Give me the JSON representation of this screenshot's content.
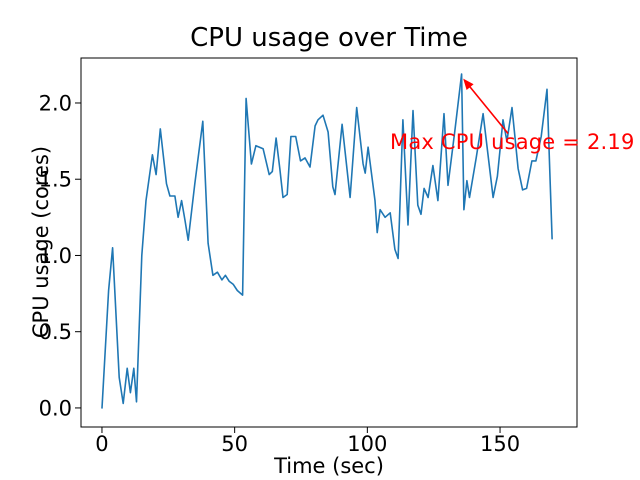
{
  "chart_data": {
    "type": "line",
    "title": "CPU usage over Time",
    "xlabel": "Time (sec)",
    "ylabel": "CPU usage (cores)",
    "line_color": "#1f77b4",
    "axis_color": "#000000",
    "background_color": "#ffffff",
    "grid": false,
    "legend": false,
    "xlim": [
      -7.9,
      179.0
    ],
    "ylim": [
      -0.125,
      2.295
    ],
    "xticks": {
      "values": [
        0,
        50,
        100,
        150
      ],
      "labels": [
        "0",
        "50",
        "100",
        "150"
      ]
    },
    "yticks": {
      "values": [
        0.0,
        0.5,
        1.0,
        1.5,
        2.0
      ],
      "labels": [
        "0.0",
        "0.5",
        "1.0",
        "1.5",
        "2.0"
      ]
    },
    "max_cpu_usage": 2.19,
    "annotation": {
      "text": "Max CPU usage = 2.19",
      "color": "#ff0000",
      "arrow_tip_xy": [
        136.1,
        2.16
      ],
      "arrow_tail_xy": [
        153.0,
        1.8
      ]
    },
    "points": [
      [
        0,
        0.0
      ],
      [
        2.5,
        0.77
      ],
      [
        4,
        1.05
      ],
      [
        6.5,
        0.2
      ],
      [
        8,
        0.03
      ],
      [
        9.5,
        0.26
      ],
      [
        10.7,
        0.1
      ],
      [
        12,
        0.26
      ],
      [
        13,
        0.04
      ],
      [
        15,
        1.0
      ],
      [
        16.6,
        1.36
      ],
      [
        19,
        1.66
      ],
      [
        20.4,
        1.53
      ],
      [
        22,
        1.83
      ],
      [
        24.3,
        1.47
      ],
      [
        25.6,
        1.39
      ],
      [
        27.5,
        1.39
      ],
      [
        28.7,
        1.25
      ],
      [
        30,
        1.36
      ],
      [
        31.3,
        1.23
      ],
      [
        32.5,
        1.1
      ],
      [
        35,
        1.47
      ],
      [
        38,
        1.88
      ],
      [
        40,
        1.08
      ],
      [
        41.8,
        0.87
      ],
      [
        43.5,
        0.89
      ],
      [
        45.2,
        0.84
      ],
      [
        46.5,
        0.87
      ],
      [
        48,
        0.83
      ],
      [
        49.5,
        0.81
      ],
      [
        51,
        0.77
      ],
      [
        53,
        0.74
      ],
      [
        54.3,
        2.03
      ],
      [
        56.3,
        1.6
      ],
      [
        58,
        1.72
      ],
      [
        60.7,
        1.7
      ],
      [
        63,
        1.53
      ],
      [
        64.2,
        1.55
      ],
      [
        65.6,
        1.77
      ],
      [
        67,
        1.57
      ],
      [
        68.2,
        1.38
      ],
      [
        69.8,
        1.4
      ],
      [
        71.2,
        1.78
      ],
      [
        73,
        1.78
      ],
      [
        74.8,
        1.62
      ],
      [
        76.5,
        1.64
      ],
      [
        78.4,
        1.58
      ],
      [
        80.3,
        1.85
      ],
      [
        81.4,
        1.89
      ],
      [
        83.3,
        1.92
      ],
      [
        85.2,
        1.81
      ],
      [
        87,
        1.45
      ],
      [
        87.8,
        1.4
      ],
      [
        90.5,
        1.86
      ],
      [
        93.5,
        1.38
      ],
      [
        96,
        1.97
      ],
      [
        98.4,
        1.6
      ],
      [
        99.2,
        1.54
      ],
      [
        100.3,
        1.71
      ],
      [
        102.9,
        1.36
      ],
      [
        103.7,
        1.15
      ],
      [
        104.8,
        1.3
      ],
      [
        106.7,
        1.25
      ],
      [
        108.6,
        1.28
      ],
      [
        110.4,
        1.04
      ],
      [
        111.6,
        0.98
      ],
      [
        113.4,
        1.89
      ],
      [
        115.3,
        1.2
      ],
      [
        117.2,
        1.95
      ],
      [
        119,
        1.33
      ],
      [
        120.2,
        1.27
      ],
      [
        121.4,
        1.44
      ],
      [
        122.9,
        1.38
      ],
      [
        124.7,
        1.59
      ],
      [
        126.6,
        1.36
      ],
      [
        128.9,
        1.93
      ],
      [
        130.4,
        1.46
      ],
      [
        133,
        1.82
      ],
      [
        135.5,
        2.19
      ],
      [
        136.4,
        1.3
      ],
      [
        137.5,
        1.49
      ],
      [
        138.5,
        1.38
      ],
      [
        141,
        1.64
      ],
      [
        143.6,
        1.93
      ],
      [
        146.3,
        1.54
      ],
      [
        147.4,
        1.38
      ],
      [
        149,
        1.52
      ],
      [
        151.1,
        1.89
      ],
      [
        152.6,
        1.75
      ],
      [
        154.5,
        1.97
      ],
      [
        156.8,
        1.57
      ],
      [
        158.5,
        1.43
      ],
      [
        160,
        1.44
      ],
      [
        162,
        1.62
      ],
      [
        163.5,
        1.62
      ],
      [
        165.5,
        1.78
      ],
      [
        167.7,
        2.09
      ],
      [
        169.6,
        1.11
      ]
    ]
  }
}
